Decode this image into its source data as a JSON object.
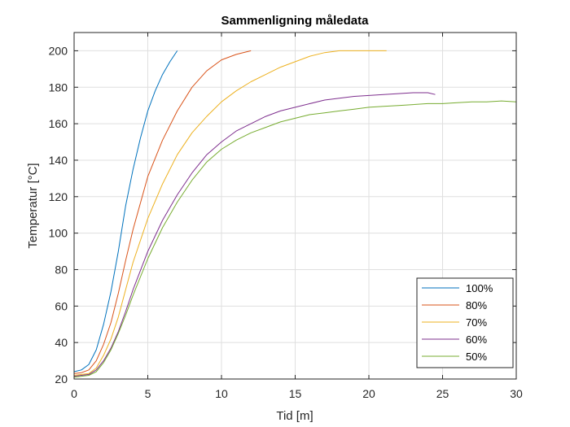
{
  "chart_data": {
    "type": "line",
    "title": "Sammenligning måledata",
    "xlabel": "Tid [m]",
    "ylabel": "Temperatur [°C]",
    "xlim": [
      0,
      30
    ],
    "ylim": [
      20,
      210
    ],
    "xticks": [
      0,
      5,
      10,
      15,
      20,
      25,
      30
    ],
    "yticks": [
      20,
      40,
      60,
      80,
      100,
      120,
      140,
      160,
      180,
      200
    ],
    "grid": true,
    "legend_position": "bottom-right",
    "series": [
      {
        "name": "100%",
        "color": "#0072BD",
        "points": [
          [
            0,
            24
          ],
          [
            0.5,
            25
          ],
          [
            1,
            28
          ],
          [
            1.5,
            36
          ],
          [
            2,
            50
          ],
          [
            2.5,
            68
          ],
          [
            3,
            90
          ],
          [
            3.5,
            115
          ],
          [
            4,
            135
          ],
          [
            4.5,
            152
          ],
          [
            5,
            167
          ],
          [
            5.5,
            178
          ],
          [
            6,
            187
          ],
          [
            6.5,
            194
          ],
          [
            7,
            200
          ]
        ]
      },
      {
        "name": "80%",
        "color": "#D95319",
        "points": [
          [
            0,
            23
          ],
          [
            0.5,
            23.5
          ],
          [
            1,
            25
          ],
          [
            1.5,
            30
          ],
          [
            2,
            39
          ],
          [
            2.5,
            51
          ],
          [
            3,
            67
          ],
          [
            3.5,
            85
          ],
          [
            4,
            102
          ],
          [
            5,
            131
          ],
          [
            6,
            151
          ],
          [
            7,
            167
          ],
          [
            8,
            180
          ],
          [
            9,
            189
          ],
          [
            10,
            195
          ],
          [
            11,
            198
          ],
          [
            12,
            200
          ]
        ]
      },
      {
        "name": "70%",
        "color": "#EDB120",
        "points": [
          [
            0,
            22
          ],
          [
            1,
            23
          ],
          [
            1.5,
            26
          ],
          [
            2,
            33
          ],
          [
            2.5,
            42
          ],
          [
            3,
            54
          ],
          [
            3.5,
            69
          ],
          [
            4,
            84
          ],
          [
            5,
            108
          ],
          [
            6,
            127
          ],
          [
            7,
            143
          ],
          [
            8,
            155
          ],
          [
            9,
            164
          ],
          [
            10,
            172
          ],
          [
            11,
            178
          ],
          [
            12,
            183
          ],
          [
            13,
            187
          ],
          [
            14,
            191
          ],
          [
            15,
            194
          ],
          [
            16,
            197
          ],
          [
            17,
            199
          ],
          [
            18,
            200
          ],
          [
            19,
            200
          ],
          [
            20,
            200
          ],
          [
            21.2,
            200
          ]
        ]
      },
      {
        "name": "60%",
        "color": "#7E2F8E",
        "points": [
          [
            0,
            21.5
          ],
          [
            1,
            22.5
          ],
          [
            1.5,
            25
          ],
          [
            2,
            30
          ],
          [
            2.5,
            37
          ],
          [
            3,
            46
          ],
          [
            3.5,
            57
          ],
          [
            4,
            69
          ],
          [
            5,
            90
          ],
          [
            6,
            107
          ],
          [
            7,
            121
          ],
          [
            8,
            133
          ],
          [
            9,
            143
          ],
          [
            10,
            150
          ],
          [
            11,
            156
          ],
          [
            12,
            160
          ],
          [
            13,
            164
          ],
          [
            14,
            167
          ],
          [
            15,
            169
          ],
          [
            16,
            171
          ],
          [
            17,
            173
          ],
          [
            18,
            174
          ],
          [
            19,
            175
          ],
          [
            20,
            175.5
          ],
          [
            21,
            176
          ],
          [
            22,
            176.5
          ],
          [
            23,
            177
          ],
          [
            24,
            177
          ],
          [
            24.5,
            176
          ]
        ]
      },
      {
        "name": "50%",
        "color": "#77AC30",
        "points": [
          [
            0,
            21
          ],
          [
            1,
            22
          ],
          [
            1.5,
            24
          ],
          [
            2,
            29
          ],
          [
            2.5,
            36
          ],
          [
            3,
            45
          ],
          [
            3.5,
            55
          ],
          [
            4,
            66
          ],
          [
            5,
            86
          ],
          [
            6,
            103
          ],
          [
            7,
            117
          ],
          [
            8,
            129
          ],
          [
            9,
            139
          ],
          [
            10,
            146
          ],
          [
            11,
            151
          ],
          [
            12,
            155
          ],
          [
            13,
            158
          ],
          [
            14,
            161
          ],
          [
            15,
            163
          ],
          [
            16,
            165
          ],
          [
            17,
            166
          ],
          [
            18,
            167
          ],
          [
            19,
            168
          ],
          [
            20,
            169
          ],
          [
            21,
            169.5
          ],
          [
            22,
            170
          ],
          [
            23,
            170.5
          ],
          [
            24,
            171
          ],
          [
            25,
            171
          ],
          [
            26,
            171.5
          ],
          [
            27,
            172
          ],
          [
            28,
            172
          ],
          [
            29,
            172.5
          ],
          [
            30,
            172
          ]
        ]
      }
    ]
  }
}
